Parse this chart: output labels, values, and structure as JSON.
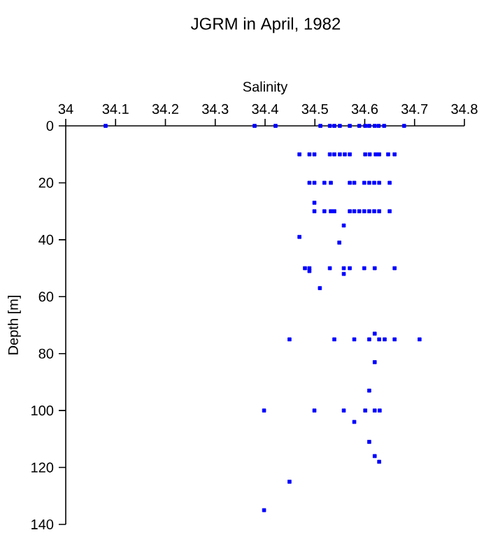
{
  "chart_data": {
    "type": "scatter",
    "title": "JGRM in April, 1982",
    "xlabel": "Salinity",
    "ylabel": "Depth [m]",
    "series": [
      {
        "color": "#0000ff",
        "x": [
          34.08,
          34.379,
          34.421,
          34.511,
          34.53,
          34.539,
          34.55,
          34.57,
          34.589,
          34.601,
          34.609,
          34.62,
          34.628,
          34.639,
          34.679,
          34.469,
          34.489,
          34.499,
          34.53,
          34.539,
          34.55,
          34.56,
          34.57,
          34.601,
          34.61,
          34.622,
          34.629,
          34.647,
          34.66,
          34.489,
          34.499,
          34.519,
          34.532,
          34.57,
          34.579,
          34.599,
          34.609,
          34.619,
          34.629,
          34.65,
          34.499,
          34.499,
          34.519,
          34.532,
          34.539,
          34.57,
          34.579,
          34.589,
          34.599,
          34.609,
          34.619,
          34.629,
          34.65,
          34.558,
          34.469,
          34.549,
          34.48,
          34.489,
          34.53,
          34.558,
          34.57,
          34.599,
          34.62,
          34.66,
          34.489,
          34.558,
          34.51,
          34.62,
          34.449,
          34.539,
          34.579,
          34.609,
          34.629,
          34.64,
          34.66,
          34.71,
          34.62,
          34.609,
          34.398,
          34.499,
          34.558,
          34.601,
          34.62,
          34.63,
          34.579,
          34.609,
          34.62,
          34.629,
          34.449,
          34.398
        ],
        "values": [
          0,
          0,
          0,
          0,
          0,
          0,
          0,
          0,
          0,
          0,
          0,
          0,
          0,
          0,
          0,
          10,
          10,
          10,
          10,
          10,
          10,
          10,
          10,
          10,
          10,
          10,
          10,
          10,
          10,
          20,
          20,
          20,
          20,
          20,
          20,
          20,
          20,
          20,
          20,
          20,
          27,
          30,
          30,
          30,
          30,
          30,
          30,
          30,
          30,
          30,
          30,
          30,
          30,
          35,
          39,
          41,
          50,
          50,
          50,
          50,
          50,
          50,
          50,
          50,
          51,
          52,
          57,
          73,
          75,
          75,
          75,
          75,
          75,
          75,
          75,
          75,
          83,
          93,
          100,
          100,
          100,
          100,
          100,
          100,
          104,
          111,
          116,
          118,
          125,
          135
        ]
      }
    ],
    "xlim": [
      34,
      34.8
    ],
    "xticks": [
      34,
      34.1,
      34.2,
      34.3,
      34.4,
      34.5,
      34.6,
      34.7,
      34.8
    ],
    "ylim": [
      140,
      0
    ],
    "yticks": [
      0,
      20,
      40,
      60,
      80,
      100,
      120,
      140
    ],
    "marker": "square",
    "grid": false
  }
}
